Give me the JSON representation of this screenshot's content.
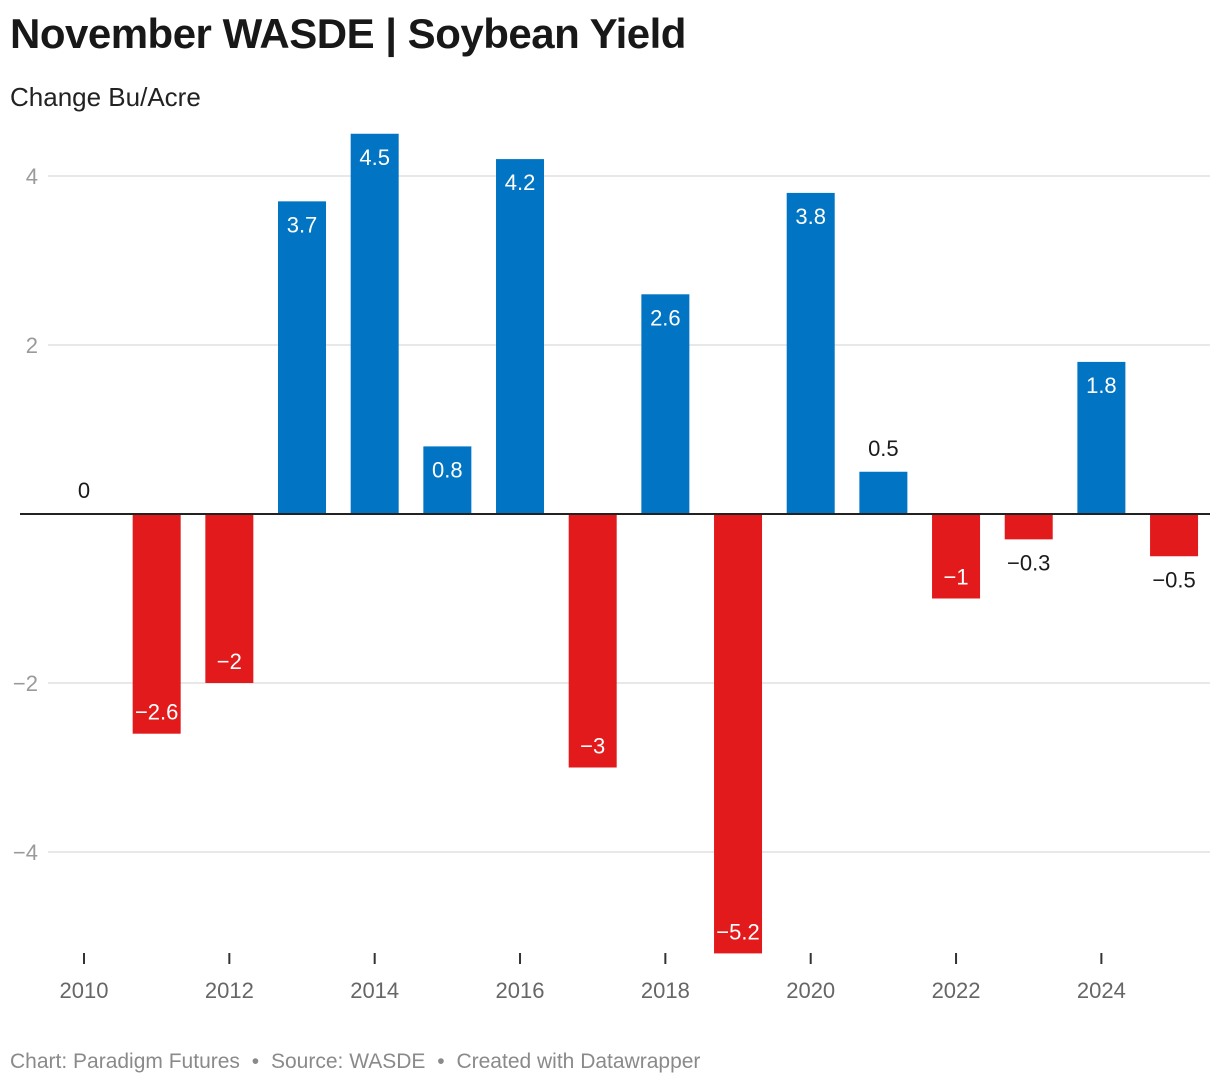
{
  "title": "November WASDE | Soybean Yield",
  "subtitle": "Change Bu/Acre",
  "footer": {
    "chart_credit": "Chart: Paradigm Futures",
    "source": "Source: WASDE",
    "created_with": "Created with Datawrapper",
    "separator": "•"
  },
  "colors": {
    "positive": "#0174c3",
    "negative": "#e31a1c",
    "zero_line": "#222222",
    "grid": "#e0e0e0"
  },
  "chart_data": {
    "type": "bar",
    "title": "November WASDE | Soybean Yield",
    "subtitle": "Change Bu/Acre",
    "categories": [
      "2010",
      "2011",
      "2012",
      "2013",
      "2014",
      "2015",
      "2016",
      "2017",
      "2018",
      "2019",
      "2020",
      "2021",
      "2022",
      "2023",
      "2024",
      "2025"
    ],
    "values": [
      0,
      -2.6,
      -2,
      3.7,
      4.5,
      0.8,
      4.2,
      -3,
      2.6,
      -5.2,
      3.8,
      0.5,
      -1,
      -0.3,
      1.8,
      -0.5
    ],
    "labels": [
      "0",
      "−2.6",
      "−2",
      "3.7",
      "4.5",
      "0.8",
      "4.2",
      "−3",
      "2.6",
      "−5.2",
      "3.8",
      "0.5",
      "−1",
      "−0.3",
      "1.8",
      "−0.5"
    ],
    "y_ticks": [
      -4,
      -2,
      2,
      4
    ],
    "y_tick_labels": [
      "−4",
      "−2",
      "2",
      "4"
    ],
    "x_ticks": [
      "2010",
      "2012",
      "2014",
      "2016",
      "2018",
      "2020",
      "2022",
      "2024"
    ],
    "ylim": [
      -5.2,
      4.5
    ],
    "grid": true,
    "legend": "none"
  }
}
